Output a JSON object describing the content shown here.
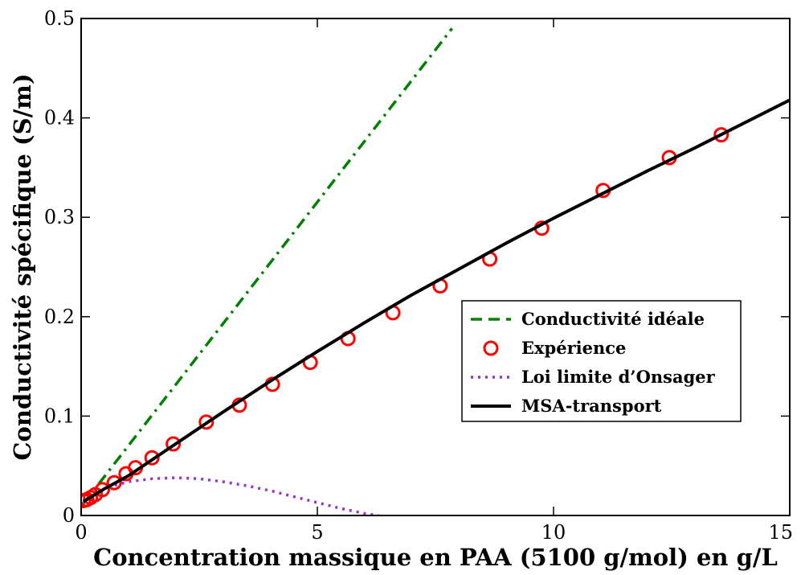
{
  "chart_data": {
    "type": "line",
    "xlabel": "Concentration massique en PAA (5100 g/mol) en g/L",
    "ylabel": "Conductivité spécifique (S/m)",
    "xlim": [
      0,
      15
    ],
    "ylim": [
      0,
      0.5
    ],
    "x_ticks": [
      0,
      5,
      10,
      15
    ],
    "x_tick_labels": [
      "0",
      "5",
      "10",
      "15"
    ],
    "y_ticks": [
      0,
      0.1,
      0.2,
      0.3,
      0.4,
      0.5
    ],
    "y_tick_labels": [
      "0",
      "0.1",
      "0.2",
      "0.3",
      "0.4",
      "0.5"
    ],
    "grid": false,
    "legend_position": "center-right",
    "series": [
      {
        "name": "Conductivité idéale",
        "kind": "line",
        "style": "dash-dot",
        "color": "#008000",
        "x": [
          0.05,
          7.85
        ],
        "y": [
          0.012,
          0.49
        ]
      },
      {
        "name": "Expérience",
        "kind": "scatter",
        "marker": "open-circle",
        "color": "#ff0000",
        "x": [
          0.05,
          0.12,
          0.2,
          0.3,
          0.45,
          0.7,
          0.95,
          1.15,
          1.5,
          1.95,
          2.65,
          3.35,
          4.05,
          4.85,
          5.65,
          6.6,
          7.6,
          8.65,
          9.75,
          11.05,
          12.45,
          13.55
        ],
        "y": [
          0.015,
          0.016,
          0.018,
          0.021,
          0.026,
          0.033,
          0.042,
          0.048,
          0.058,
          0.072,
          0.094,
          0.111,
          0.132,
          0.154,
          0.178,
          0.204,
          0.231,
          0.258,
          0.289,
          0.327,
          0.36,
          0.383
        ]
      },
      {
        "name": "Loi limite d’Onsager",
        "kind": "line",
        "style": "dotted",
        "color": "#9932cc",
        "x": [
          0.05,
          0.3,
          0.6,
          1.0,
          1.5,
          2.0,
          2.5,
          3.0,
          3.5,
          4.0,
          4.5,
          5.0,
          5.5,
          6.0,
          6.3
        ],
        "y": [
          0.013,
          0.022,
          0.029,
          0.034,
          0.037,
          0.038,
          0.037,
          0.034,
          0.03,
          0.025,
          0.019,
          0.013,
          0.007,
          0.002,
          0.0
        ]
      },
      {
        "name": "MSA-transport",
        "kind": "line",
        "style": "solid",
        "color": "#000000",
        "x": [
          0.05,
          0.5,
          1.0,
          2.0,
          3.0,
          4.0,
          5.0,
          6.0,
          7.0,
          8.0,
          9.0,
          10.0,
          11.0,
          12.0,
          13.0,
          14.0,
          15.0
        ],
        "y": [
          0.014,
          0.027,
          0.04,
          0.072,
          0.104,
          0.135,
          0.165,
          0.194,
          0.222,
          0.248,
          0.274,
          0.299,
          0.323,
          0.347,
          0.37,
          0.394,
          0.418
        ]
      }
    ]
  }
}
